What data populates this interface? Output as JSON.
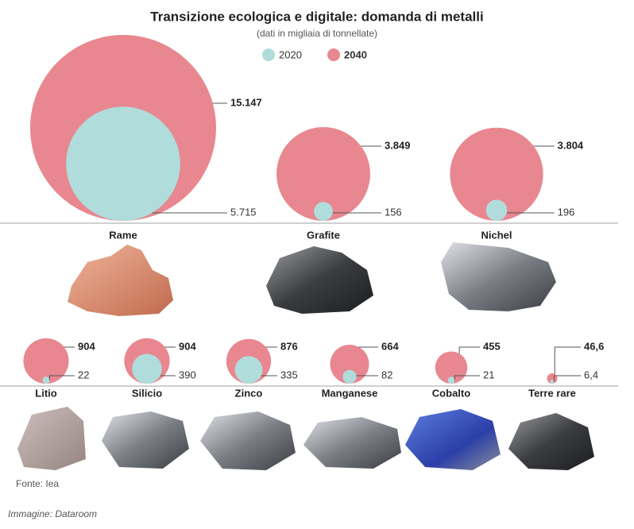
{
  "chart_data": {
    "type": "bubble",
    "title": "Transizione ecologica e digitale: domanda di metalli",
    "subtitle": "(dati in migliaia di tonnellate)",
    "categories": [
      "Rame",
      "Grafite",
      "Nichel",
      "Litio",
      "Silicio",
      "Zinco",
      "Manganese",
      "Cobalto",
      "Terre rare"
    ],
    "series": [
      {
        "name": "2020",
        "color": "#b0dcdc",
        "values": [
          5715,
          156,
          196,
          22,
          390,
          335,
          82,
          21,
          6.4
        ],
        "value_labels": [
          "5.715",
          "156",
          "196",
          "22",
          "390",
          "335",
          "82",
          "21",
          "6,4"
        ]
      },
      {
        "name": "2040",
        "color": "#e8878f",
        "values": [
          15147,
          3849,
          3804,
          904,
          904,
          876,
          664,
          455,
          46.6
        ],
        "value_labels": [
          "15.147",
          "3.849",
          "3.804",
          "904",
          "904",
          "876",
          "664",
          "455",
          "46,6"
        ]
      }
    ],
    "source": "Fonte: Iea"
  },
  "caption": "Immagine: Dataroom"
}
